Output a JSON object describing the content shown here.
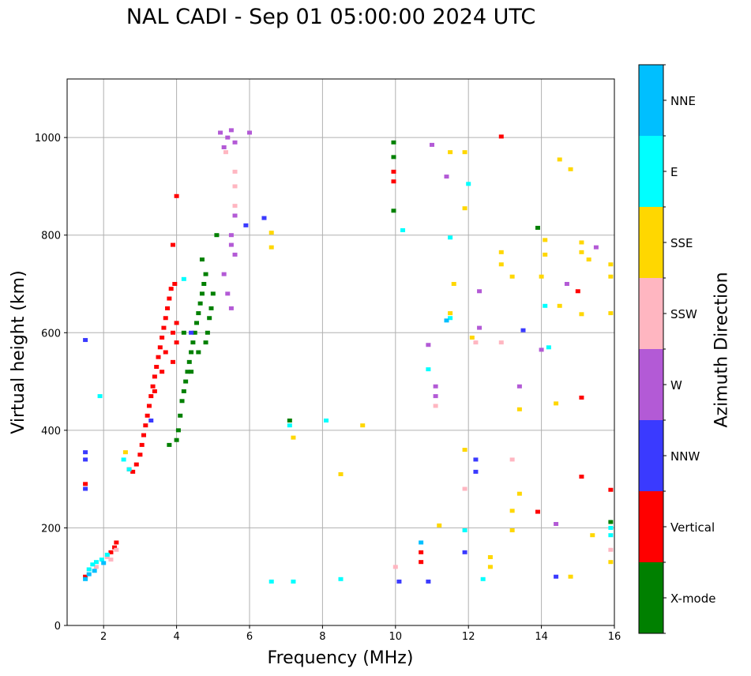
{
  "chart_data": {
    "type": "scatter",
    "title": "NAL CADI - Sep 01 05:00:00 2024 UTC",
    "xlabel": "Frequency (MHz)",
    "ylabel": "Virtual height (km)",
    "xlim": [
      1.0,
      16.0
    ],
    "ylim": [
      0,
      1120
    ],
    "xticks": [
      2,
      4,
      6,
      8,
      10,
      12,
      14,
      16
    ],
    "yticks": [
      0,
      200,
      400,
      600,
      800,
      1000
    ],
    "grid": true,
    "colorbar": {
      "label": "Azimuth Direction",
      "categories": [
        {
          "name": "X-mode",
          "color": "#008000"
        },
        {
          "name": "Vertical",
          "color": "#ff0000"
        },
        {
          "name": "NNW",
          "color": "#3a3aff"
        },
        {
          "name": "W",
          "color": "#b35ad6"
        },
        {
          "name": "SSW",
          "color": "#ffb6c1"
        },
        {
          "name": "SSE",
          "color": "#ffd700"
        },
        {
          "name": "E",
          "color": "#00ffff"
        },
        {
          "name": "NNE",
          "color": "#00bfff"
        }
      ]
    },
    "series": [
      {
        "name": "X-mode",
        "points": [
          [
            4.0,
            380
          ],
          [
            4.05,
            400
          ],
          [
            4.1,
            430
          ],
          [
            4.15,
            460
          ],
          [
            4.2,
            480
          ],
          [
            4.25,
            500
          ],
          [
            4.3,
            520
          ],
          [
            4.35,
            540
          ],
          [
            4.4,
            560
          ],
          [
            4.45,
            580
          ],
          [
            4.5,
            600
          ],
          [
            4.55,
            620
          ],
          [
            4.6,
            640
          ],
          [
            4.65,
            660
          ],
          [
            4.7,
            680
          ],
          [
            4.75,
            700
          ],
          [
            4.8,
            720
          ],
          [
            4.85,
            600
          ],
          [
            4.9,
            630
          ],
          [
            4.95,
            650
          ],
          [
            5.0,
            680
          ],
          [
            4.7,
            750
          ],
          [
            5.1,
            800
          ],
          [
            4.4,
            520
          ],
          [
            4.6,
            560
          ],
          [
            4.8,
            580
          ],
          [
            3.8,
            370
          ],
          [
            4.2,
            600
          ],
          [
            9.95,
            990
          ],
          [
            9.95,
            960
          ],
          [
            9.95,
            850
          ],
          [
            13.9,
            815
          ],
          [
            15.9,
            212
          ],
          [
            7.1,
            420
          ]
        ]
      },
      {
        "name": "Vertical",
        "points": [
          [
            2.7,
            320
          ],
          [
            2.8,
            315
          ],
          [
            2.9,
            330
          ],
          [
            3.0,
            350
          ],
          [
            3.05,
            370
          ],
          [
            3.1,
            390
          ],
          [
            3.15,
            410
          ],
          [
            3.2,
            430
          ],
          [
            3.25,
            450
          ],
          [
            3.3,
            470
          ],
          [
            3.35,
            490
          ],
          [
            3.4,
            510
          ],
          [
            3.45,
            530
          ],
          [
            3.5,
            550
          ],
          [
            3.55,
            570
          ],
          [
            3.6,
            590
          ],
          [
            3.65,
            610
          ],
          [
            3.7,
            630
          ],
          [
            3.75,
            650
          ],
          [
            3.8,
            670
          ],
          [
            3.85,
            690
          ],
          [
            3.9,
            600
          ],
          [
            4.0,
            620
          ],
          [
            3.7,
            560
          ],
          [
            3.9,
            540
          ],
          [
            4.0,
            580
          ],
          [
            3.6,
            520
          ],
          [
            3.4,
            480
          ],
          [
            3.95,
            700
          ],
          [
            3.9,
            780
          ],
          [
            4.0,
            880
          ],
          [
            2.2,
            150
          ],
          [
            2.3,
            160
          ],
          [
            2.35,
            170
          ],
          [
            1.5,
            100
          ],
          [
            1.5,
            290
          ],
          [
            9.95,
            930
          ],
          [
            9.95,
            910
          ],
          [
            10.7,
            150
          ],
          [
            10.7,
            130
          ],
          [
            12.9,
            1002
          ],
          [
            15.0,
            685
          ],
          [
            15.1,
            467
          ],
          [
            15.1,
            305
          ],
          [
            15.9,
            278
          ],
          [
            13.9,
            233
          ]
        ]
      },
      {
        "name": "NNW",
        "points": [
          [
            1.5,
            340
          ],
          [
            1.5,
            355
          ],
          [
            1.5,
            280
          ],
          [
            1.5,
            585
          ],
          [
            3.3,
            420
          ],
          [
            4.4,
            600
          ],
          [
            5.9,
            820
          ],
          [
            6.4,
            835
          ],
          [
            10.9,
            90
          ],
          [
            10.1,
            90
          ],
          [
            12.2,
            340
          ],
          [
            12.2,
            315
          ],
          [
            11.9,
            150
          ],
          [
            13.5,
            605
          ],
          [
            14.4,
            100
          ]
        ]
      },
      {
        "name": "W",
        "points": [
          [
            5.2,
            1010
          ],
          [
            5.4,
            1000
          ],
          [
            5.6,
            990
          ],
          [
            5.3,
            980
          ],
          [
            5.5,
            1015
          ],
          [
            6.0,
            1010
          ],
          [
            5.6,
            840
          ],
          [
            5.5,
            800
          ],
          [
            5.5,
            780
          ],
          [
            5.6,
            760
          ],
          [
            5.3,
            720
          ],
          [
            5.4,
            680
          ],
          [
            5.5,
            650
          ],
          [
            10.9,
            575
          ],
          [
            11.1,
            490
          ],
          [
            11.1,
            470
          ],
          [
            12.3,
            685
          ],
          [
            12.3,
            610
          ],
          [
            13.4,
            490
          ],
          [
            14.0,
            565
          ],
          [
            14.7,
            700
          ],
          [
            15.5,
            775
          ],
          [
            14.4,
            208
          ],
          [
            11.0,
            985
          ],
          [
            11.4,
            920
          ]
        ]
      },
      {
        "name": "SSW",
        "points": [
          [
            2.1,
            140
          ],
          [
            2.2,
            135
          ],
          [
            2.35,
            155
          ],
          [
            1.8,
            120
          ],
          [
            5.6,
            930
          ],
          [
            5.6,
            900
          ],
          [
            5.6,
            860
          ],
          [
            10.0,
            120
          ],
          [
            11.1,
            450
          ],
          [
            12.2,
            580
          ],
          [
            12.9,
            580
          ],
          [
            13.2,
            340
          ],
          [
            15.9,
            155
          ],
          [
            11.9,
            280
          ],
          [
            5.35,
            970
          ]
        ]
      },
      {
        "name": "SSE",
        "points": [
          [
            2.6,
            355
          ],
          [
            6.6,
            775
          ],
          [
            6.6,
            805
          ],
          [
            7.2,
            385
          ],
          [
            8.5,
            310
          ],
          [
            9.1,
            410
          ],
          [
            11.5,
            970
          ],
          [
            11.9,
            970
          ],
          [
            12.9,
            765
          ],
          [
            12.9,
            740
          ],
          [
            13.2,
            715
          ],
          [
            14.1,
            790
          ],
          [
            14.0,
            715
          ],
          [
            14.1,
            760
          ],
          [
            14.5,
            655
          ],
          [
            14.5,
            955
          ],
          [
            14.8,
            935
          ],
          [
            15.1,
            785
          ],
          [
            15.1,
            765
          ],
          [
            15.3,
            750
          ],
          [
            15.9,
            740
          ],
          [
            15.9,
            715
          ],
          [
            15.1,
            638
          ],
          [
            15.9,
            640
          ],
          [
            14.4,
            455
          ],
          [
            13.4,
            443
          ],
          [
            13.4,
            270
          ],
          [
            13.2,
            235
          ],
          [
            13.2,
            195
          ],
          [
            12.6,
            140
          ],
          [
            12.6,
            120
          ],
          [
            14.8,
            100
          ],
          [
            15.4,
            185
          ],
          [
            15.9,
            130
          ],
          [
            11.2,
            205
          ],
          [
            11.9,
            360
          ],
          [
            12.1,
            590
          ],
          [
            11.9,
            855
          ],
          [
            11.6,
            700
          ],
          [
            11.5,
            640
          ]
        ]
      },
      {
        "name": "E",
        "points": [
          [
            1.6,
            115
          ],
          [
            1.7,
            125
          ],
          [
            1.8,
            130
          ],
          [
            1.95,
            135
          ],
          [
            2.1,
            145
          ],
          [
            2.55,
            340
          ],
          [
            2.7,
            320
          ],
          [
            1.9,
            470
          ],
          [
            4.2,
            710
          ],
          [
            7.1,
            410
          ],
          [
            8.1,
            420
          ],
          [
            10.2,
            810
          ],
          [
            10.9,
            525
          ],
          [
            11.5,
            630
          ],
          [
            11.5,
            795
          ],
          [
            12.4,
            95
          ],
          [
            14.2,
            570
          ],
          [
            14.1,
            655
          ],
          [
            15.9,
            185
          ],
          [
            15.9,
            200
          ],
          [
            11.9,
            195
          ],
          [
            6.6,
            90
          ],
          [
            8.5,
            95
          ],
          [
            7.2,
            90
          ],
          [
            12.0,
            905
          ]
        ]
      },
      {
        "name": "NNE",
        "points": [
          [
            1.5,
            95
          ],
          [
            1.6,
            105
          ],
          [
            1.75,
            112
          ],
          [
            2.0,
            128
          ],
          [
            10.7,
            170
          ],
          [
            11.4,
            625
          ]
        ]
      }
    ]
  }
}
